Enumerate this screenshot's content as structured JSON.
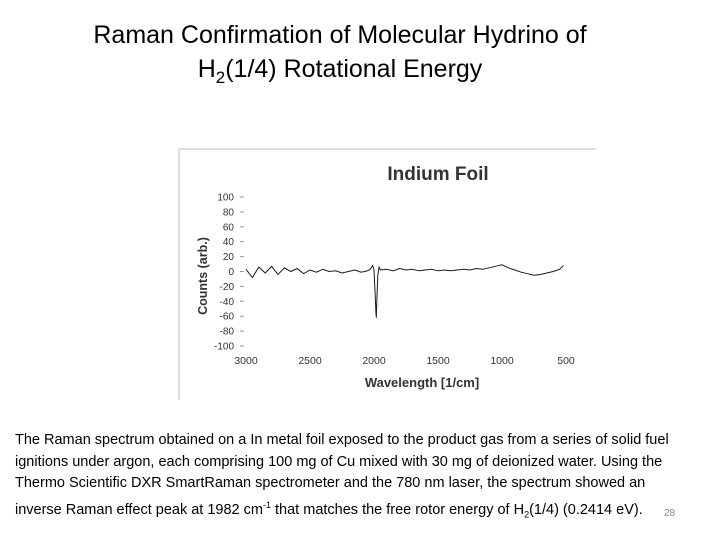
{
  "slide": {
    "title_line1": "Raman Confirmation of Molecular Hydrino of",
    "title_line2_pre": "H",
    "title_line2_sub": "2",
    "title_line2_post": "(1/4) Rotational Energy",
    "caption": {
      "part1": "The Raman spectrum obtained on a In metal foil exposed to the product gas from a series of solid fuel ignitions under argon, each comprising 100 mg of Cu mixed with 30 mg of deionized water.  Using the Thermo Scientific DXR SmartRaman spectrometer and the 780 nm laser, the spectrum showed an inverse Raman effect peak at 1982 cm",
      "sup": "-1",
      "part2": " that matches the free rotor energy of H",
      "sub": "2",
      "part3": "(1/4) (0.2414 e",
      "part3b": "V)."
    },
    "number": "28"
  },
  "chart_data": {
    "type": "line",
    "title": "Indium Foil",
    "xlabel": "Wavelength [1/cm]",
    "ylabel": "Counts (arb.)",
    "xlim": [
      3000,
      500
    ],
    "ylim": [
      -100,
      100
    ],
    "x_ticks": [
      "3000",
      "2500",
      "2000",
      "1500",
      "1000",
      "500"
    ],
    "y_ticks": [
      "100",
      "80",
      "60",
      "40",
      "20",
      "0",
      "-20",
      "-40",
      "-60",
      "-80",
      "-100"
    ],
    "grid": false,
    "series": [
      {
        "color": "#1a1a1a",
        "x": [
          3000,
          2950,
          2900,
          2850,
          2800,
          2750,
          2700,
          2650,
          2600,
          2550,
          2500,
          2450,
          2400,
          2350,
          2300,
          2250,
          2200,
          2150,
          2100,
          2050,
          2030,
          2010,
          2000,
          1995,
          1990,
          1985,
          1982,
          1978,
          1970,
          1960,
          1950,
          1900,
          1850,
          1800,
          1750,
          1700,
          1650,
          1600,
          1550,
          1500,
          1450,
          1400,
          1350,
          1300,
          1250,
          1200,
          1150,
          1100,
          1050,
          1000,
          950,
          900,
          850,
          800,
          750,
          700,
          650,
          600,
          550,
          520
        ],
        "y": [
          3,
          -8,
          6,
          -2,
          7,
          -4,
          5,
          0,
          4,
          -3,
          2,
          -1,
          3,
          0,
          1,
          -2,
          0,
          2,
          -1,
          1,
          3,
          8,
          2,
          -15,
          -35,
          -55,
          -62,
          -40,
          -5,
          6,
          2,
          3,
          1,
          4,
          2,
          3,
          1,
          2,
          3,
          1,
          2,
          1,
          2,
          3,
          2,
          4,
          3,
          5,
          7,
          9,
          5,
          2,
          -1,
          -3,
          -5,
          -4,
          -2,
          0,
          3,
          8
        ]
      }
    ]
  }
}
